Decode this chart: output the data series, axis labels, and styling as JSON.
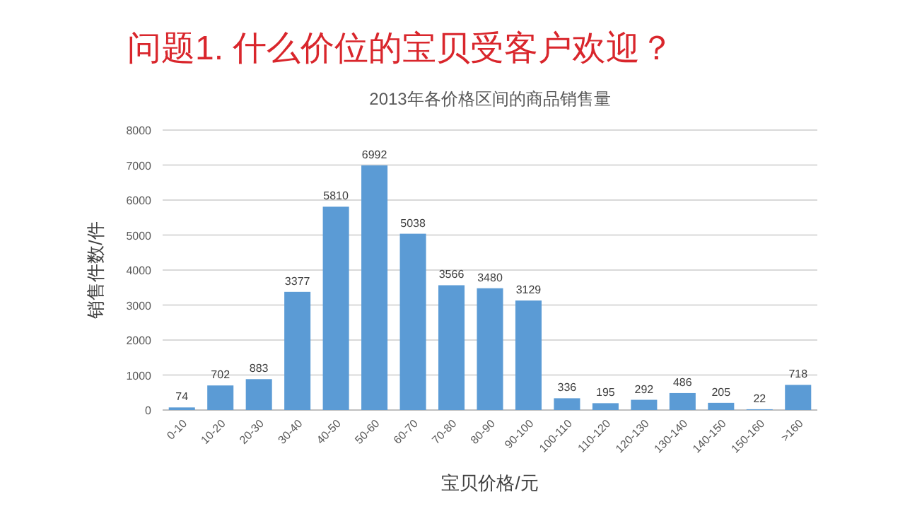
{
  "chart_data": {
    "type": "bar",
    "title": "问题1.  什么价位的宝贝受客户欢迎？",
    "subtitle": "2013年各价格区间的商品销售量",
    "xlabel": "宝贝价格/元",
    "ylabel": "销售件数/件",
    "categories": [
      "0-10",
      "10-20",
      "20-30",
      "30-40",
      "40-50",
      "50-60",
      "60-70",
      "70-80",
      "80-90",
      "90-100",
      "100-110",
      "110-120",
      "120-130",
      "130-140",
      "140-150",
      "150-160",
      ">160"
    ],
    "values": [
      74,
      702,
      883,
      3377,
      5810,
      6992,
      5038,
      3566,
      3480,
      3129,
      336,
      195,
      292,
      486,
      205,
      22,
      718
    ],
    "color": "#5b9bd5",
    "ylim": [
      0,
      8000
    ],
    "yticks": [
      0,
      1000,
      2000,
      3000,
      4000,
      5000,
      6000,
      7000,
      8000
    ],
    "grid": "y",
    "data_labels": true
  }
}
